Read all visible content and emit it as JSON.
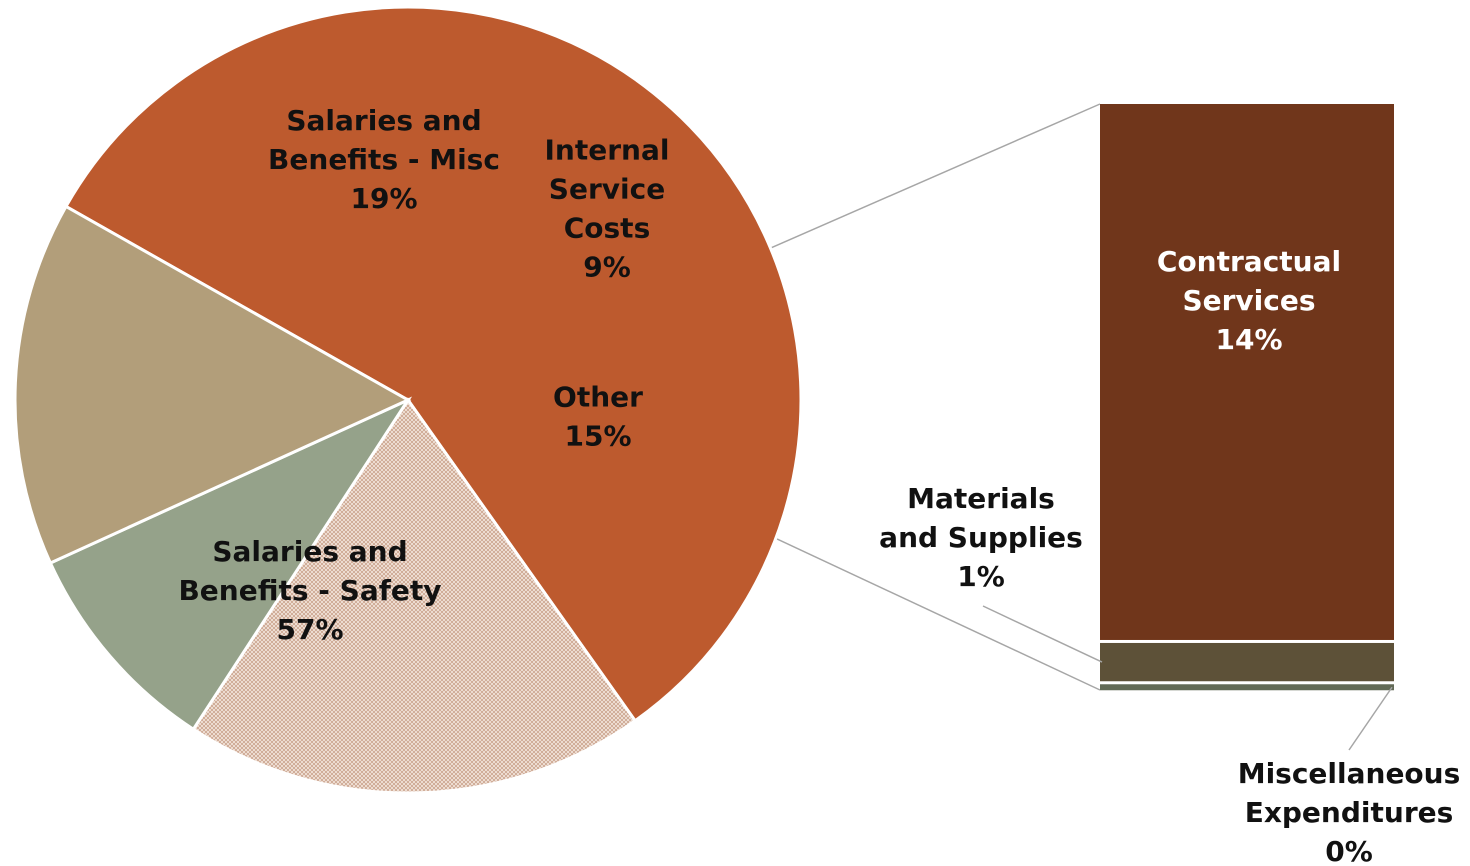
{
  "chart_data": {
    "type": "pie",
    "variant": "bar-of-pie",
    "title": "",
    "pie": {
      "slices": [
        {
          "label_lines": [
            "Salaries and",
            "Benefits - Safety"
          ],
          "percent_label": "57%",
          "value": 57,
          "color": "#bd5a2e",
          "pattern": "none"
        },
        {
          "label_lines": [
            "Salaries and",
            "Benefits - Misc"
          ],
          "percent_label": "19%",
          "value": 19,
          "color": "#c9a08a",
          "pattern": "crosshatch"
        },
        {
          "label_lines": [
            "Internal",
            "Service",
            "Costs"
          ],
          "percent_label": "9%",
          "value": 9,
          "color": "#95a28a",
          "pattern": "none"
        },
        {
          "label_lines": [
            "Other"
          ],
          "percent_label": "15%",
          "value": 15,
          "color": "#b29e7a",
          "pattern": "none",
          "exploded_to_bar": true
        }
      ]
    },
    "bar": {
      "segments": [
        {
          "label_lines": [
            "Contractual",
            "Services"
          ],
          "percent_label": "14%",
          "value": 14,
          "color": "#70361b"
        },
        {
          "label_lines": [
            "Materials",
            "and Supplies"
          ],
          "percent_label": "1%",
          "value": 1,
          "color": "#5d5138"
        },
        {
          "label_lines": [
            "Miscellaneous",
            "Expenditures"
          ],
          "percent_label": "0%",
          "value": 0.15,
          "color": "#626a56"
        }
      ]
    }
  }
}
